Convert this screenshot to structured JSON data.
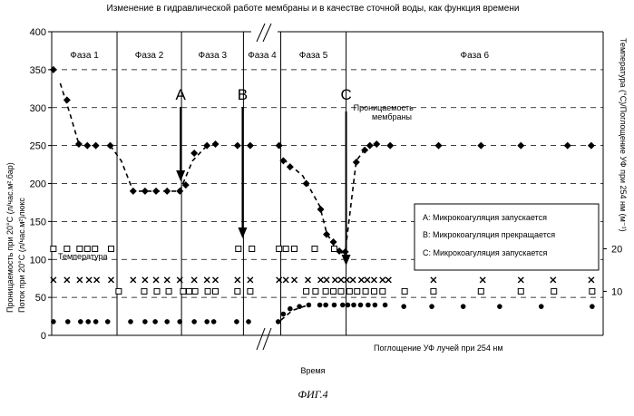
{
  "chart_data": {
    "type": "scatter",
    "title": "Изменение в гидравлической работе мембраны и в качестве сточной воды, как функция времени",
    "caption": "ФИГ.4",
    "xlabel": "Время",
    "ylabel_left_1": "Проницаемость при 20°C (л/час.м².бар)",
    "ylabel_left_2": "Поток при 20°C (л/час.м²)люкс",
    "ylabel_right": "Температура (°C)/Поглощение УФ при 254 нм (м⁻¹)",
    "left_axis": {
      "min": 0,
      "max": 400,
      "ticks": [
        "0",
        "50",
        "100",
        "150",
        "200",
        "250",
        "300",
        "350",
        "400"
      ]
    },
    "right_axis": {
      "min": 0,
      "max": 100,
      "ticks": [
        "10",
        "20"
      ]
    },
    "phases": [
      "Фаза 1",
      "Фаза 2",
      "Фаза 3",
      "Фаза 4",
      "Фаза 5",
      "Фаза 6"
    ],
    "events": [
      {
        "label": "A",
        "text": "A: Микрокоагуляция запускается"
      },
      {
        "label": "B",
        "text": "B: Микрокоагуляция прекращается"
      },
      {
        "label": "C",
        "text": "C: Микрокоагуляция запускается"
      }
    ],
    "series_labels": {
      "permeability": "Проницаемость мембраны",
      "temperature": "Температура",
      "uv": "Поглощение УФ лучей при 254 нм"
    },
    "series": {
      "permeability": [
        [
          0.2,
          350
        ],
        [
          1.8,
          310
        ],
        [
          3.2,
          252
        ],
        [
          4.2,
          250
        ],
        [
          5.2,
          250
        ],
        [
          6.9,
          250
        ],
        [
          9.6,
          190
        ],
        [
          11.0,
          190
        ],
        [
          12.3,
          190
        ],
        [
          13.6,
          190
        ],
        [
          15.1,
          190
        ],
        [
          15.8,
          198
        ],
        [
          16.8,
          240
        ],
        [
          18.3,
          250
        ],
        [
          19.3,
          252
        ],
        [
          21.9,
          250
        ],
        [
          23.4,
          250
        ],
        [
          26.8,
          250
        ],
        [
          27.3,
          230
        ],
        [
          28.1,
          222
        ],
        [
          30.0,
          200
        ],
        [
          31.7,
          166
        ],
        [
          32.4,
          133
        ],
        [
          33.2,
          123
        ],
        [
          33.9,
          111
        ],
        [
          34.6,
          110
        ],
        [
          35.9,
          228
        ],
        [
          36.9,
          244
        ],
        [
          37.5,
          250
        ],
        [
          38.3,
          252
        ],
        [
          39.9,
          250
        ],
        [
          45.6,
          250
        ],
        [
          50.6,
          250
        ],
        [
          55.3,
          250
        ],
        [
          60.8,
          250
        ],
        [
          63.6,
          250
        ]
      ],
      "temperature": [
        [
          0.2,
          114
        ],
        [
          1.8,
          114
        ],
        [
          3.3,
          114
        ],
        [
          4.2,
          114
        ],
        [
          5.1,
          114
        ],
        [
          7.0,
          114
        ],
        [
          22.0,
          114
        ],
        [
          23.6,
          114
        ],
        [
          26.8,
          114
        ],
        [
          27.6,
          114
        ],
        [
          28.6,
          114
        ],
        [
          31.0,
          114
        ],
        [
          33.3,
          114
        ]
      ],
      "flux": [
        [
          0.2,
          73
        ],
        [
          1.8,
          73
        ],
        [
          3.3,
          73
        ],
        [
          4.4,
          73
        ],
        [
          5.3,
          73
        ],
        [
          7.0,
          73
        ],
        [
          9.6,
          73
        ],
        [
          11.0,
          73
        ],
        [
          12.3,
          73
        ],
        [
          13.6,
          73
        ],
        [
          15.1,
          73
        ],
        [
          16.8,
          73
        ],
        [
          18.3,
          73
        ],
        [
          19.3,
          73
        ],
        [
          21.9,
          73
        ],
        [
          23.4,
          73
        ],
        [
          26.8,
          73
        ],
        [
          27.6,
          73
        ],
        [
          28.6,
          73
        ],
        [
          30.2,
          73
        ],
        [
          31.7,
          73
        ],
        [
          32.4,
          73
        ],
        [
          33.4,
          73
        ],
        [
          34.1,
          73
        ],
        [
          34.8,
          73
        ],
        [
          35.5,
          73
        ],
        [
          36.5,
          73
        ],
        [
          37.2,
          73
        ],
        [
          38.0,
          73
        ],
        [
          39.0,
          73
        ],
        [
          39.7,
          73
        ],
        [
          45.0,
          73
        ],
        [
          50.8,
          73
        ],
        [
          55.3,
          73
        ],
        [
          59.1,
          73
        ],
        [
          63.6,
          73
        ]
      ],
      "temp_low": [
        [
          7.9,
          58
        ],
        [
          10.9,
          58
        ],
        [
          12.4,
          58
        ],
        [
          13.8,
          58
        ],
        [
          15.5,
          58
        ],
        [
          16.2,
          58
        ],
        [
          16.9,
          58
        ],
        [
          18.4,
          58
        ],
        [
          19.3,
          58
        ],
        [
          21.9,
          58
        ],
        [
          23.4,
          58
        ],
        [
          30.0,
          58
        ],
        [
          31.1,
          58
        ],
        [
          32.3,
          58
        ],
        [
          33.2,
          58
        ],
        [
          34.1,
          58
        ],
        [
          35.1,
          58
        ],
        [
          36.0,
          58
        ],
        [
          37.0,
          58
        ],
        [
          38.0,
          58
        ],
        [
          39.0,
          58
        ],
        [
          41.6,
          58
        ],
        [
          45.0,
          58
        ],
        [
          50.6,
          58
        ],
        [
          55.3,
          58
        ],
        [
          59.2,
          58
        ],
        [
          63.7,
          58
        ]
      ],
      "uv": [
        [
          0.2,
          18
        ],
        [
          1.9,
          18
        ],
        [
          3.4,
          18
        ],
        [
          4.3,
          18
        ],
        [
          5.2,
          18
        ],
        [
          6.6,
          18
        ],
        [
          9.3,
          18
        ],
        [
          11.0,
          18
        ],
        [
          12.2,
          18
        ],
        [
          13.6,
          18
        ],
        [
          15.1,
          18
        ],
        [
          16.8,
          18
        ],
        [
          18.3,
          18
        ],
        [
          19.1,
          18
        ],
        [
          21.8,
          18
        ],
        [
          23.2,
          18
        ],
        [
          26.7,
          18
        ],
        [
          27.3,
          28
        ],
        [
          28.1,
          35
        ],
        [
          29.2,
          38
        ],
        [
          30.3,
          40
        ],
        [
          31.6,
          40
        ],
        [
          32.3,
          40
        ],
        [
          33.3,
          40
        ],
        [
          34.3,
          40
        ],
        [
          34.9,
          40
        ],
        [
          35.6,
          40
        ],
        [
          36.4,
          40
        ],
        [
          37.3,
          40
        ],
        [
          38.1,
          40
        ],
        [
          39.3,
          40
        ],
        [
          41.5,
          38
        ],
        [
          44.8,
          38
        ],
        [
          48.5,
          38
        ],
        [
          52.8,
          38
        ],
        [
          57.7,
          38
        ],
        [
          63.7,
          38
        ]
      ]
    }
  }
}
